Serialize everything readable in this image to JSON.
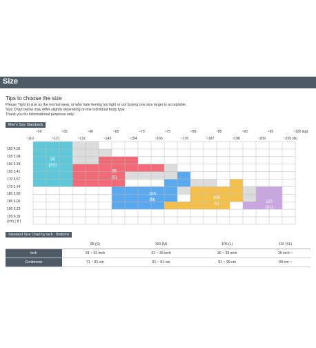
{
  "header": {
    "title": "Size"
  },
  "tips": {
    "title": "Tips to choose the size",
    "lines": [
      "Please Tight to size as the normal wear, or who hate feeling too tight or out buying one size larger is acceptable.",
      "Size Chart below may differ slightly depending on the individual body type.",
      "Thank you for informational purposes only."
    ]
  },
  "standards": {
    "label": "Men's Size Standards",
    "weight_kg": [
      "~50",
      "~55",
      "~60",
      "~65",
      "~70",
      "~75",
      "~80",
      "~85",
      "~90",
      "~95",
      "~100 (kg)"
    ],
    "weight_lb": [
      "~110",
      "~121",
      "~132",
      "~143",
      "~154",
      "~165",
      "~176",
      "~187",
      "~198",
      "~209",
      "~220 (lb)"
    ],
    "rows": [
      {
        "cm": "150",
        "ft": "4.92"
      },
      {
        "cm": "155",
        "ft": "5.08"
      },
      {
        "cm": "160",
        "ft": "5.24"
      },
      {
        "cm": "165",
        "ft": "5.41"
      },
      {
        "cm": "170",
        "ft": "5.57"
      },
      {
        "cm": "175",
        "ft": "5.74"
      },
      {
        "cm": "180",
        "ft": "5.90"
      },
      {
        "cm": "185",
        "ft": "6.06"
      },
      {
        "cm": "190",
        "ft": "6.23"
      },
      {
        "cm": "195",
        "ft": "6.39"
      }
    ],
    "unit_row": "(cm)  ( ft )",
    "sizes": [
      {
        "label": "90",
        "sub": "(XS)",
        "color": "#5ec8d8"
      },
      {
        "label": "95",
        "sub": "(S)",
        "color": "#f06a78"
      },
      {
        "label": "100",
        "sub": "(M)",
        "color": "#5aa8ee"
      },
      {
        "label": "105",
        "sub": "(L)",
        "color": "#f4c04c"
      },
      {
        "label": "110",
        "sub": "(XL)",
        "color": "#c9a6e0"
      }
    ]
  },
  "table": {
    "label": "Standard Size Chart  by inch - Bottoms",
    "headers": [
      "",
      "95 (S)",
      "100 (M)",
      "105 (L)",
      "110 (XL)"
    ],
    "rows": [
      {
        "name": "Inch",
        "values": [
          "28 ~ 32 inch",
          "32 ~ 36 inch",
          "36 ~ 39 inch",
          "39 inch ~"
        ]
      },
      {
        "name": "Centimeter",
        "values": [
          "71 ~ 81 cm",
          "81 ~ 91 cm",
          "91 ~ 99 cm",
          "99 cm ~"
        ]
      }
    ]
  }
}
